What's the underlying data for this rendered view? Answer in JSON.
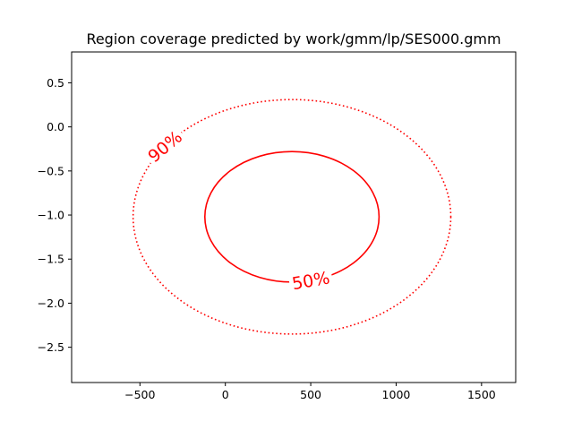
{
  "chart_data": {
    "type": "contour",
    "title": "Region coverage predicted by work/gmm/lp/SES000.gmm",
    "xlabel": "",
    "ylabel": "",
    "xlim": [
      -900,
      1700
    ],
    "ylim": [
      -2.9,
      0.85
    ],
    "xticks": [
      -500,
      0,
      500,
      1000,
      1500
    ],
    "xtick_labels": [
      "−500",
      "0",
      "500",
      "1000",
      "1500"
    ],
    "yticks": [
      0.5,
      0.0,
      -0.5,
      -1.0,
      -1.5,
      -2.0,
      -2.5
    ],
    "ytick_labels": [
      "0.5",
      "0.0",
      "−0.5",
      "−1.0",
      "−1.5",
      "−2.0",
      "−2.5"
    ],
    "grid": false,
    "contours": [
      {
        "label": "50%",
        "color": "#ff0000",
        "linestyle": "solid",
        "center": [
          390,
          -1.02
        ],
        "semi_axis_x": 510,
        "semi_axis_y": 0.74,
        "label_at": [
          500,
          -1.74
        ],
        "label_rotation_deg": -10
      },
      {
        "label": "90%",
        "color": "#ff0000",
        "linestyle": "dotted",
        "center": [
          390,
          -1.02
        ],
        "semi_axis_x": 930,
        "semi_axis_y": 1.33,
        "label_at": [
          -355,
          -0.22
        ],
        "label_rotation_deg": -40
      }
    ]
  }
}
